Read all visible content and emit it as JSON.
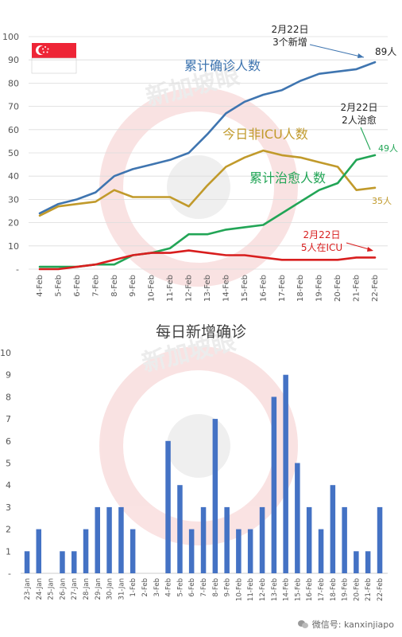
{
  "watermark": "新加坡眼",
  "footer": {
    "text": "微信号: kanxinjiapo"
  },
  "colors": {
    "cumulative": "#3f75b0",
    "active": "#c19a2b",
    "recovered": "#22a556",
    "icu": "#d81e1e",
    "daily_bar": "#4472c4",
    "flag_red": "#ee2536",
    "grid": "#dcdcdc",
    "axis_text": "#555555"
  },
  "chart_data": [
    {
      "type": "line",
      "title": "",
      "xlabel": "",
      "ylabel": "",
      "ylim": [
        0,
        100
      ],
      "yticks": [
        "-",
        "10",
        "20",
        "30",
        "40",
        "50",
        "60",
        "70",
        "80",
        "90",
        "100"
      ],
      "grid": true,
      "x": [
        "4-Feb",
        "5-Feb",
        "6-Feb",
        "7-Feb",
        "8-Feb",
        "9-Feb",
        "10-Feb",
        "11-Feb",
        "12-Feb",
        "13-Feb",
        "14-Feb",
        "15-Feb",
        "16-Feb",
        "17-Feb",
        "18-Feb",
        "19-Feb",
        "20-Feb",
        "21-Feb",
        "22-Feb"
      ],
      "series": [
        {
          "name": "累计确诊人数",
          "color": "#3f75b0",
          "values": [
            24,
            28,
            30,
            33,
            40,
            43,
            45,
            47,
            50,
            58,
            67,
            72,
            75,
            77,
            81,
            84,
            85,
            86,
            89
          ]
        },
        {
          "name": "今日非ICU人数",
          "color": "#c19a2b",
          "values": [
            23,
            27,
            28,
            29,
            34,
            31,
            31,
            31,
            27,
            36,
            44,
            48,
            51,
            49,
            48,
            46,
            44,
            34,
            35
          ]
        },
        {
          "name": "累计治愈人数",
          "color": "#22a556",
          "values": [
            1,
            1,
            1,
            2,
            2,
            6,
            7,
            9,
            15,
            15,
            17,
            18,
            19,
            24,
            29,
            34,
            37,
            47,
            49
          ]
        },
        {
          "name": "",
          "color": "#d81e1e",
          "values": [
            0,
            0,
            1,
            2,
            4,
            6,
            7,
            7,
            8,
            7,
            6,
            6,
            5,
            4,
            4,
            4,
            4,
            5,
            5
          ]
        }
      ],
      "annotations": {
        "cumulative_note": [
          "2月22日",
          "3个新增"
        ],
        "cumulative_end": "89人",
        "recovered_note": [
          "2月22日",
          "2人治愈"
        ],
        "recovered_end": "49人",
        "active_end": "35人",
        "icu_note": [
          "2月22日",
          "5人在ICU"
        ]
      }
    },
    {
      "type": "bar",
      "title": "每日新增确诊",
      "xlabel": "",
      "ylabel": "",
      "ylim": [
        0,
        10
      ],
      "yticks": [
        "-",
        "1",
        "2",
        "3",
        "4",
        "5",
        "6",
        "7",
        "8",
        "9",
        "10"
      ],
      "grid": false,
      "categories": [
        "23-Jan",
        "24-Jan",
        "25-Jan",
        "26-Jan",
        "27-Jan",
        "28-Jan",
        "29-Jan",
        "30-Jan",
        "31-Jan",
        "1-Feb",
        "2-Feb",
        "3-Feb",
        "4-Feb",
        "5-Feb",
        "6-Feb",
        "7-Feb",
        "8-Feb",
        "9-Feb",
        "10-Feb",
        "11-Feb",
        "12-Feb",
        "13-Feb",
        "14-Feb",
        "15-Feb",
        "16-Feb",
        "17-Feb",
        "18-Feb",
        "19-Feb",
        "20-Feb",
        "21-Feb",
        "22-Feb"
      ],
      "values": [
        1,
        2,
        0,
        1,
        1,
        2,
        3,
        3,
        3,
        2,
        0,
        0,
        6,
        4,
        2,
        3,
        7,
        3,
        2,
        2,
        3,
        8,
        9,
        5,
        3,
        2,
        4,
        3,
        1,
        1,
        3
      ]
    }
  ]
}
